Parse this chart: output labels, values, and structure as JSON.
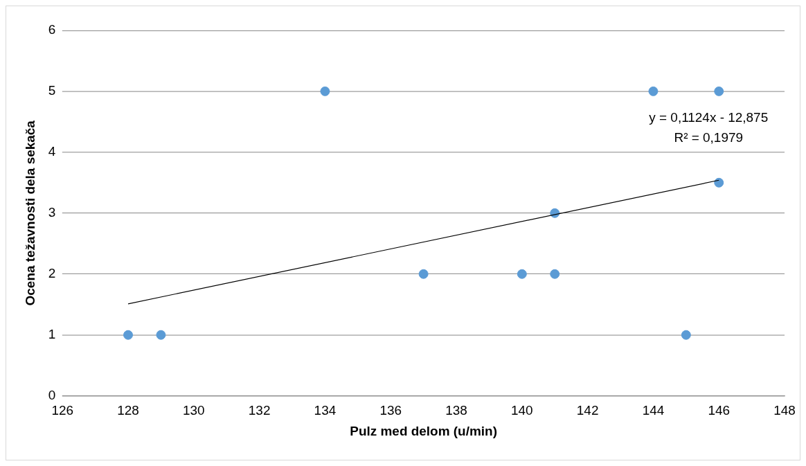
{
  "chart_data": {
    "type": "scatter",
    "xlabel": "Pulz med delom (u/min)",
    "ylabel": "Ocena težavnosti dela sekača",
    "series": [
      {
        "type": "scatter",
        "marker": "circle",
        "color": "#5b9bd5",
        "x": [
          128,
          129,
          134,
          137,
          140,
          141,
          141,
          144,
          146,
          146,
          145
        ],
        "values": [
          1,
          1,
          5,
          2,
          2,
          2,
          3,
          5,
          5,
          3.5,
          1
        ]
      },
      {
        "type": "line",
        "marker": "none",
        "color": "#000000",
        "x": [
          128,
          146
        ],
        "values": [
          1.51,
          3.54
        ]
      }
    ],
    "annotations": [
      "y = 0,1124x - 12,875",
      "R² = 0,1979"
    ],
    "xlim": [
      126,
      148
    ],
    "xticks": [
      126,
      128,
      130,
      132,
      134,
      136,
      138,
      140,
      142,
      144,
      146,
      148
    ],
    "ylim": [
      0,
      6
    ],
    "yticks": [
      0,
      1,
      2,
      3,
      4,
      5,
      6
    ],
    "grid": "y",
    "legend": false
  }
}
